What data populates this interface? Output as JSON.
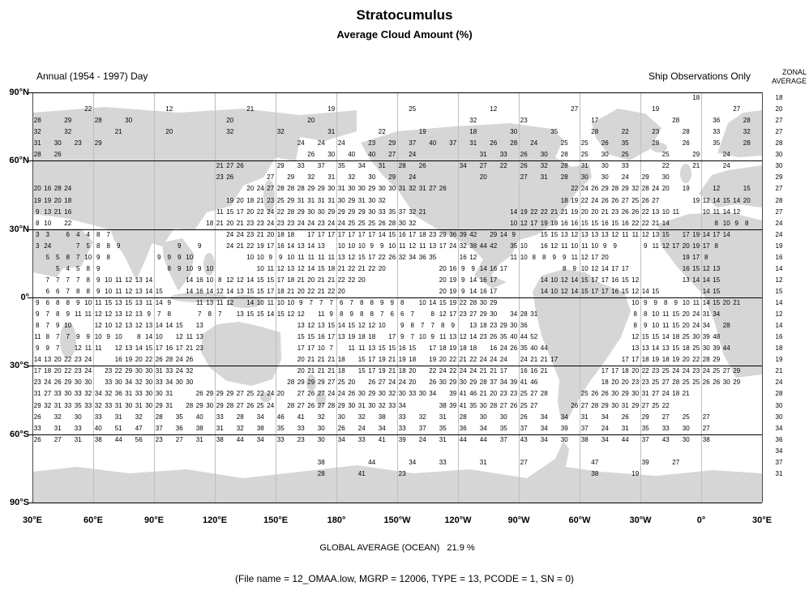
{
  "title": "Stratocumulus",
  "subtitle": "Average Cloud Amount (%)",
  "header": {
    "left": "Annual (1954 - 1997) Day",
    "right": "Ship Observations Only"
  },
  "zonal": {
    "label_line1": "ZONAL",
    "label_line2": "AVERAGE",
    "values": [
      18,
      20,
      27,
      27,
      28,
      30,
      30,
      29,
      27,
      28,
      27,
      24,
      24,
      19,
      16,
      14,
      12,
      15,
      14,
      12,
      14,
      16,
      18,
      19,
      21,
      24,
      28,
      30,
      30,
      34,
      36,
      34,
      37,
      31
    ]
  },
  "footer": {
    "global_average": "GLOBAL AVERAGE (OCEAN)   21.9 %",
    "file_info": "(File name = 12_OMAA.low, MGRP = 12006, TYPE = 13, PCODE = 1, SN = 0)"
  },
  "axes": {
    "lat_labels": [
      "90°N",
      "60°N",
      "30°N",
      "0°",
      "30°S",
      "60°S",
      "90°S"
    ],
    "lon_labels": [
      "30°E",
      "60°E",
      "90°E",
      "120°E",
      "150°E",
      "180°",
      "150°W",
      "120°W",
      "90°W",
      "60°W",
      "30°W",
      "0°",
      "30°E"
    ]
  },
  "colors": {
    "land": "#d6d6d6",
    "grid_light": "#bfbfbf",
    "grid_dark": "#000000"
  },
  "chart_data": {
    "type": "heatmap",
    "title": "Stratocumulus Average Cloud Amount (%)",
    "units": "percent cloud amount",
    "grid": "5 deg lat x 5 deg lon cells, map spans 30E eastward to 30E, 90N to 90S",
    "global_average_percent": 21.9,
    "zonal_average": [
      18,
      20,
      27,
      27,
      28,
      30,
      30,
      29,
      27,
      28,
      27,
      24,
      24,
      19,
      16,
      14,
      12,
      15,
      14,
      12,
      14,
      16,
      18,
      19,
      21,
      24,
      28,
      30,
      30,
      34,
      36,
      34,
      37,
      31
    ],
    "rows_note": "each row = 5 deg latitude band from 90-85N down; segments are [startCol, colStep, values]",
    "rows": [
      [
        [
          65,
          1,
          "18"
        ]
      ],
      [
        [
          5,
          1,
          "22"
        ],
        [
          13,
          1,
          "12"
        ],
        [
          21,
          1,
          "21"
        ],
        [
          29,
          1,
          "19"
        ],
        [
          37,
          1,
          "25"
        ],
        [
          45,
          1,
          "12"
        ],
        [
          53,
          1,
          "27"
        ],
        [
          61,
          1,
          "19"
        ],
        [
          69,
          1,
          "27"
        ]
      ],
      [
        [
          0,
          3,
          "28 29 28 30"
        ],
        [
          19,
          8,
          "20 20"
        ],
        [
          43,
          5,
          "32 23"
        ],
        [
          55,
          1,
          "17"
        ],
        [
          63,
          1,
          "28"
        ],
        [
          67,
          3,
          "36 28"
        ]
      ],
      [
        [
          0,
          3,
          "32 32"
        ],
        [
          8,
          5,
          "21 20"
        ],
        [
          19,
          5,
          "32 32 31 22"
        ],
        [
          38,
          5,
          "19 18"
        ],
        [
          47,
          4,
          "30 35 28"
        ],
        [
          58,
          3,
          "22 23 28 33 32"
        ]
      ],
      [
        [
          0,
          2,
          "31 30 23 29"
        ],
        [
          26,
          2,
          "24 24 24"
        ],
        [
          33,
          2,
          "23 29 37 40 37"
        ],
        [
          43,
          2,
          "31 26 28 24"
        ],
        [
          52,
          2,
          "25 25 26 35"
        ],
        [
          61,
          3,
          "28 26 35 28"
        ]
      ],
      [
        [
          0,
          2,
          "28 26"
        ],
        [
          27,
          2,
          "26 30 40 40 27 24"
        ],
        [
          44,
          2,
          "31 33 26 30 28 25 30 25"
        ],
        [
          62,
          3,
          "25 29 24"
        ]
      ],
      [
        [
          18,
          1,
          "21 27 26"
        ],
        [
          24,
          2,
          "29 33 37 35 34 31 28 26"
        ],
        [
          42,
          2,
          "34 27 22 26 32 28 31 30 33"
        ],
        [
          62,
          3,
          "22 21 24"
        ]
      ],
      [
        [
          18,
          1,
          "23 26"
        ],
        [
          23,
          2,
          "27 29 32 31 32 30 29 24"
        ],
        [
          44,
          1,
          "20"
        ],
        [
          48,
          2,
          "27 31 28 30 30 24 29 30"
        ]
      ],
      [
        [
          0,
          1,
          "20 16 28 24"
        ],
        [
          21,
          1,
          "20 24 27 28 28 28 29 29 30 31 30 30 29 30 30 31 32 31 27 26"
        ],
        [
          53,
          1,
          "22 24 26 29 28 29 32 28 24 20"
        ],
        [
          64,
          1,
          "19"
        ],
        [
          67,
          3,
          "12 15"
        ]
      ],
      [
        [
          0,
          1,
          "19 19 20 18"
        ],
        [
          19,
          1,
          "19 20 18 21 23 25 29 31 31 31 31 30 29 31 30 32"
        ],
        [
          52,
          1,
          "18 19 22 24 26 26 27 25 26 27"
        ],
        [
          65,
          1,
          "19 12 14 15 14 20"
        ]
      ],
      [
        [
          0,
          1,
          "9 13 21 16"
        ],
        [
          18,
          1,
          "11 15 17 20 22 24 22 28 29 30 30 29 29 29 29 30 33 35 37 32 21"
        ],
        [
          47,
          1,
          "14 19 22 22 21 21 19 20 20 21 23 26 26 22 13 10 11"
        ],
        [
          66,
          1,
          "10 11 14 12"
        ]
      ],
      [
        [
          0,
          1,
          "8 10"
        ],
        [
          3,
          1,
          "22"
        ],
        [
          17,
          1,
          "18 21 20 21 23 23 24 23 23 24 24 23 24 24 25 25 25 26 28 30 32"
        ],
        [
          47,
          1,
          "10 12 17 19 18 16 16 15 15 16 15 16 22 22 21 14"
        ],
        [
          67,
          1,
          "8 10 9 8"
        ]
      ],
      [
        [
          0,
          1,
          "3 3"
        ],
        [
          3,
          1,
          "6 4 4 8 7"
        ],
        [
          19,
          1,
          "24 24 23 21 20 18 18"
        ],
        [
          27,
          1,
          "17 17 17 17 17 17 17 14 15 16 17 18 23 29 36 39 42"
        ],
        [
          45,
          1,
          "29 14 9"
        ],
        [
          50,
          1,
          "15 15 13 12 13 13 13 12 11 11 12 13 15"
        ],
        [
          64,
          1,
          "17 19 14 17 14"
        ]
      ],
      [
        [
          0,
          1,
          "3 24"
        ],
        [
          4,
          1,
          "7 5 8 8 9"
        ],
        [
          14,
          2,
          "9 9"
        ],
        [
          19,
          1,
          "24 21 22 19 17 16 14 13 14 13"
        ],
        [
          30,
          1,
          "10 10 10 9 9 10 11 12 11 13 17 24 32 38 44 42"
        ],
        [
          47,
          1,
          "35 10"
        ],
        [
          50,
          1,
          "16 12 11 10 11 10 9 9"
        ],
        [
          60,
          1,
          "9 11 12 17 20 19 17 8"
        ]
      ],
      [
        [
          1,
          1,
          "5 5 8 7 10 9 8"
        ],
        [
          12,
          1,
          "9 9 9 10"
        ],
        [
          21,
          1,
          "10 10 9 9 10 11 11 11 11 13 12 15 17 22 26 32 34 36 35"
        ],
        [
          42,
          1,
          "16 12"
        ],
        [
          47,
          1,
          "11 10 8 8 9 9 11 12 17 20"
        ],
        [
          64,
          1,
          "19 17 8"
        ]
      ],
      [
        [
          2,
          1,
          "5 4 5 8 9"
        ],
        [
          13,
          1,
          "8 9 10 9 10"
        ],
        [
          22,
          1,
          "10 11 12 13 12 14 15 18 21 22 21 22 20"
        ],
        [
          40,
          1,
          "20 16 9 9 14 16 17"
        ],
        [
          52,
          1,
          "8 9 10 12 14 17 17"
        ],
        [
          64,
          1,
          "16 15 12 13"
        ]
      ],
      [
        [
          1,
          1,
          "7 7 7 7 8 9 10 11 12 13 14"
        ],
        [
          15,
          1,
          "14 16 10 8 12 12 14 15 15 17 18 21 20 21 21 22 22 20"
        ],
        [
          40,
          1,
          "20 19 9 14 16 17"
        ],
        [
          50,
          1,
          "14 10 12 14 15 17 17 16 15 12"
        ],
        [
          64,
          1,
          "13 14 14 15"
        ]
      ],
      [
        [
          1,
          1,
          "6 6 7 8 8 9 10 11 12 13 14 15"
        ],
        [
          15,
          1,
          "14 16 14 12 14 13 15 15 17 18 21 20 22 21 22 20"
        ],
        [
          40,
          1,
          "20 19 9 14 16 17"
        ],
        [
          50,
          1,
          "14 10 12 14 15 17 17 16 15 12 14 15"
        ],
        [
          66,
          1,
          "14 15"
        ]
      ],
      [
        [
          0,
          1,
          "9 6 8 8 9 10 11 15 13 15 13 11 14 9"
        ],
        [
          16,
          1,
          "11 13 11 12"
        ],
        [
          21,
          1,
          "14 10 11 10 10 9 7 7 7 6 7 8 8 9 9 8"
        ],
        [
          38,
          1,
          "10 14 15 19 22 28 30 29"
        ],
        [
          59,
          1,
          "10 9 9 8 9 10 11 14 15"
        ],
        [
          68,
          1,
          "20 21"
        ]
      ],
      [
        [
          0,
          1,
          "9 7 8 9 11 11 12 12 13 12 13 9 7 8"
        ],
        [
          16,
          1,
          "7 8 7"
        ],
        [
          20,
          1,
          "13 15 15 14 15 12 12"
        ],
        [
          28,
          1,
          "11 9 8 9 8 8 7 6 6 7"
        ],
        [
          39,
          1,
          "8 12 17 23 27 29 30"
        ],
        [
          47,
          1,
          "34 28 31"
        ],
        [
          59,
          1,
          "8 8 10 11 15 20 24 31 34"
        ]
      ],
      [
        [
          0,
          1,
          "8 7 9 10"
        ],
        [
          6,
          1,
          "12 10 12 13 12 13 14 14 15"
        ],
        [
          16,
          1,
          "13"
        ],
        [
          26,
          1,
          "13 12 13 15 14 15 12 12 10"
        ],
        [
          36,
          1,
          "9 8 7 7 8 9"
        ],
        [
          43,
          1,
          "13 18 23 29 30 36"
        ],
        [
          59,
          1,
          "8 9 10 11 15 20 24 34"
        ],
        [
          68,
          1,
          "28"
        ]
      ],
      [
        [
          0,
          1,
          "11 8 7 7 9 9 10 9 10"
        ],
        [
          10,
          1,
          "8 14 10"
        ],
        [
          14,
          1,
          "12 11 13"
        ],
        [
          26,
          1,
          "15 15 16 17 13 19 18 18"
        ],
        [
          35,
          1,
          "17 9 7 10 9"
        ],
        [
          40,
          1,
          "11 13 12 14 23 26 35 40 44 52"
        ],
        [
          59,
          1,
          "12 15 15 14 18 25 30"
        ],
        [
          66,
          1,
          "39 48"
        ]
      ],
      [
        [
          0,
          1,
          "9 9 7"
        ],
        [
          4,
          1,
          "12 11 11"
        ],
        [
          8,
          1,
          "12 13 14 15 17 16 17 21 23"
        ],
        [
          26,
          1,
          "17 17 10 7"
        ],
        [
          31,
          1,
          "11 11 13 15 15 16 15"
        ],
        [
          39,
          1,
          "17 18 19 18 18"
        ],
        [
          45,
          1,
          "16 24 26 35 40 44"
        ],
        [
          59,
          1,
          "13 13 14 13 15 18 25"
        ],
        [
          66,
          1,
          "30 39 44"
        ]
      ],
      [
        [
          0,
          1,
          "14 13 20 22 23 24"
        ],
        [
          8,
          1,
          "16 19 20 22 26 28 24 26"
        ],
        [
          26,
          1,
          "20 21 21 21 18"
        ],
        [
          32,
          1,
          "15 17 19 21 19 18"
        ],
        [
          39,
          1,
          "19 20 22 21 22 24 24 24"
        ],
        [
          48,
          1,
          "24 21 21 17"
        ],
        [
          58,
          1,
          "17 17 18 19 18 19 20 22 28 29"
        ]
      ],
      [
        [
          0,
          1,
          "17 18 20 22 23 24"
        ],
        [
          7,
          1,
          "23 22 29 30 30 31 33 24 32"
        ],
        [
          26,
          1,
          "20 21 21 21 18"
        ],
        [
          32,
          1,
          "15 17 19 21 18 20"
        ],
        [
          39,
          1,
          "22 24 22 24 24 21 21 17"
        ],
        [
          48,
          1,
          "16 16 21"
        ],
        [
          56,
          1,
          "17 17 18 20 22 23 25 24 24 23 24 25 27 29"
        ]
      ],
      [
        [
          0,
          1,
          "23 24 26 29 30 30"
        ],
        [
          7,
          1,
          "33 30 34 32 30 33 34 30 30"
        ],
        [
          25,
          1,
          "28 29 29 29 27 25 20"
        ],
        [
          33,
          1,
          "26 27 24 24 20"
        ],
        [
          39,
          1,
          "26 30 29 30 29 28"
        ],
        [
          45,
          1,
          "37 34 39 41 46"
        ],
        [
          56,
          1,
          "18 20 20 23 23 25 27 28 25 25 26 26 30 29"
        ]
      ],
      [
        [
          0,
          1,
          "31 27 33 30 33 32 34 32 36 31 33 30 30 31"
        ],
        [
          16,
          1,
          "26 29 29 29 27 25 22 24 20"
        ],
        [
          26,
          1,
          "27 26 27 24 24 26 30 29 30 32 30 33 30 34"
        ],
        [
          41,
          1,
          "39 41 46 21 20 23 23 25 27 28"
        ],
        [
          54,
          1,
          "25 26 26 30 29 30 31 27 24 18 21"
        ]
      ],
      [
        [
          0,
          1,
          "29 32 31 33 35 33 32 33 31 30 31 30 29 31"
        ],
        [
          15,
          1,
          "28 29 30 29 28 27 26 25 24"
        ],
        [
          25,
          1,
          "28 27 26 27 28 29 30 31 30 32 33 34"
        ],
        [
          40,
          1,
          "38 39 41 35 30 28 27 26 25 27"
        ],
        [
          53,
          1,
          "26 27 28 29 30 31 29 27 25 22"
        ]
      ],
      [
        [
          0,
          2,
          "26 32 30 33 31 32 28 35 40 33 28 34 46 41 32 30 32 38 33 32 31 28 30 30 26 34 34 31 34 26 29 27 25 27"
        ]
      ],
      [
        [
          0,
          2,
          "33 31 33 40 51 47 37 36 38 31 32 38 35 33 30 26 24 34 33 37 35 36 34 35 37 34 39 37 24 31 35 33 30 27"
        ]
      ],
      [
        [
          0,
          2,
          "26 27 31 38 44 56 23 27 31 38 44 34 33 23 30 34 33 41 39 24 31 44 44 37 43 34 30 38 34 44 37 43 30 38"
        ]
      ],
      [],
      [
        [
          28,
          1,
          "38"
        ],
        [
          33,
          1,
          "44"
        ],
        [
          37,
          1,
          "34"
        ],
        [
          40,
          1,
          "33"
        ],
        [
          44,
          1,
          "31"
        ],
        [
          48,
          1,
          "27"
        ],
        [
          55,
          1,
          "47"
        ],
        [
          60,
          1,
          "39"
        ],
        [
          63,
          1,
          "27"
        ]
      ],
      [
        [
          28,
          1,
          "28"
        ],
        [
          32,
          1,
          "41"
        ],
        [
          36,
          1,
          "23"
        ],
        [
          55,
          1,
          "38"
        ],
        [
          59,
          1,
          "19"
        ]
      ],
      [],
      []
    ]
  }
}
